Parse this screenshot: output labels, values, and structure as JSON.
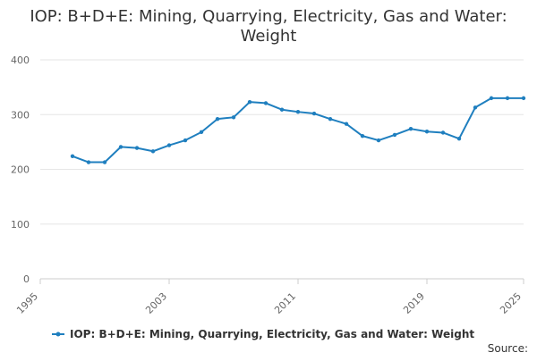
{
  "chart_data": {
    "type": "line",
    "title_lines": [
      "IOP: B+D+E: Mining, Quarrying, Electricity, Gas and Water:",
      "Weight"
    ],
    "xlabel": "",
    "ylabel": "",
    "xlim": [
      1995,
      2025
    ],
    "ylim": [
      0,
      400
    ],
    "x_ticks": [
      1995,
      2003,
      2011,
      2019,
      2025
    ],
    "y_ticks": [
      0,
      100,
      200,
      300,
      400
    ],
    "grid": true,
    "legend_position": "bottom",
    "series": [
      {
        "name": "IOP: B+D+E: Mining, Quarrying, Electricity, Gas and Water: Weight",
        "color": "#1f7fbf",
        "x": [
          1997,
          1998,
          1999,
          2000,
          2001,
          2002,
          2003,
          2004,
          2005,
          2006,
          2007,
          2008,
          2009,
          2010,
          2011,
          2012,
          2013,
          2014,
          2015,
          2016,
          2017,
          2018,
          2019,
          2020,
          2021,
          2022,
          2023,
          2024,
          2025
        ],
        "y": [
          224,
          213,
          213,
          241,
          239,
          233,
          244,
          253,
          268,
          292,
          295,
          323,
          321,
          309,
          305,
          302,
          292,
          283,
          261,
          253,
          263,
          274,
          269,
          267,
          256,
          313,
          330,
          330,
          330
        ]
      }
    ]
  },
  "source_label": "Source:"
}
